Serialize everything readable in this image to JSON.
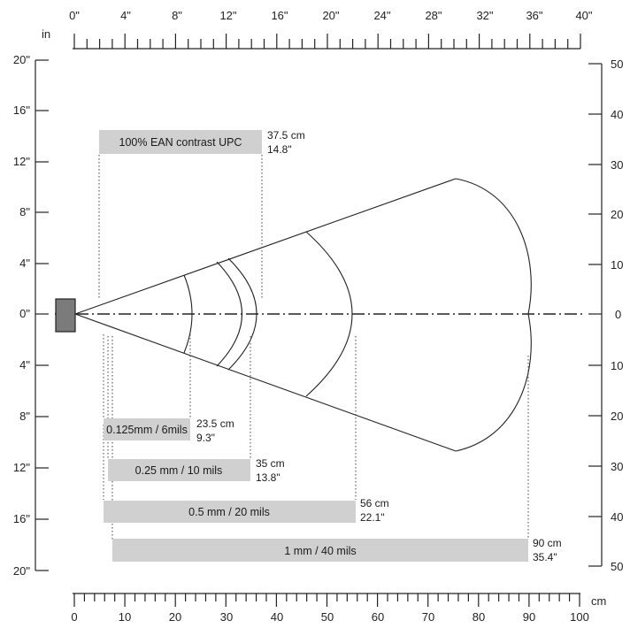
{
  "units": {
    "in_label": "in",
    "cm_label": "cm"
  },
  "top_axis": {
    "labels": [
      "0\"",
      "4\"",
      "8\"",
      "12\"",
      "16\"",
      "20\"",
      "24\"",
      "28\"",
      "32\"",
      "36\"",
      "40\""
    ]
  },
  "bottom_axis": {
    "labels": [
      "0",
      "10",
      "20",
      "30",
      "40",
      "50",
      "60",
      "70",
      "80",
      "90",
      "100"
    ]
  },
  "left_axis": {
    "labels": [
      "20\"",
      "16\"",
      "12\"",
      "8\"",
      "4\"",
      "0\"",
      "4\"",
      "8\"",
      "12\"",
      "16\"",
      "20\""
    ]
  },
  "right_axis": {
    "labels": [
      "50",
      "40",
      "30",
      "20",
      "10",
      "0",
      "10",
      "20",
      "30",
      "40",
      "50"
    ]
  },
  "zones": [
    {
      "label": "100% EAN contrast UPC",
      "range_cm": "37.5 cm",
      "range_in": "14.8\"",
      "far_cm": 37.5
    },
    {
      "label": "0.125mm / 6mils",
      "range_cm": "23.5 cm",
      "range_in": "9.3\"",
      "far_cm": 23.5
    },
    {
      "label": "0.25 mm / 10 mils",
      "range_cm": "35 cm",
      "range_in": "13.8\"",
      "far_cm": 35
    },
    {
      "label": "0.5 mm / 20 mils",
      "range_cm": "56 cm",
      "range_in": "22.1\"",
      "far_cm": 56
    },
    {
      "label": "1 mm / 40 mils",
      "range_cm": "90 cm",
      "range_in": "35.4\"",
      "far_cm": 90
    }
  ],
  "colors": {
    "bar_fill": "#d0d0d0",
    "scanner_fill": "#7b7b7b",
    "line": "#222222"
  }
}
